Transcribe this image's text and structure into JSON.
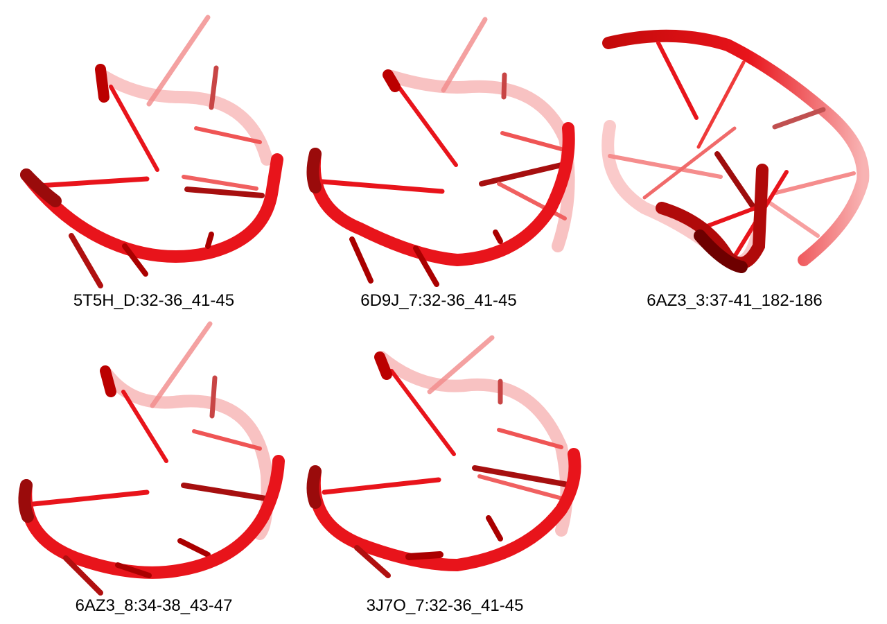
{
  "panels": [
    {
      "caption": "5T5H_D:32-36_41-45"
    },
    {
      "caption": "6D9J_7:32-36_41-45"
    },
    {
      "caption": "6AZ3_3:37-41_182-186"
    },
    {
      "caption": "6AZ3_8:34-38_43-47"
    },
    {
      "caption": "3J7O_7:32-36_41-45"
    }
  ],
  "colors": {
    "backbone": "#e8141b",
    "backbone_dark": "#8c0000",
    "base": "#e8141b",
    "base_faded": "#f47a7a"
  }
}
